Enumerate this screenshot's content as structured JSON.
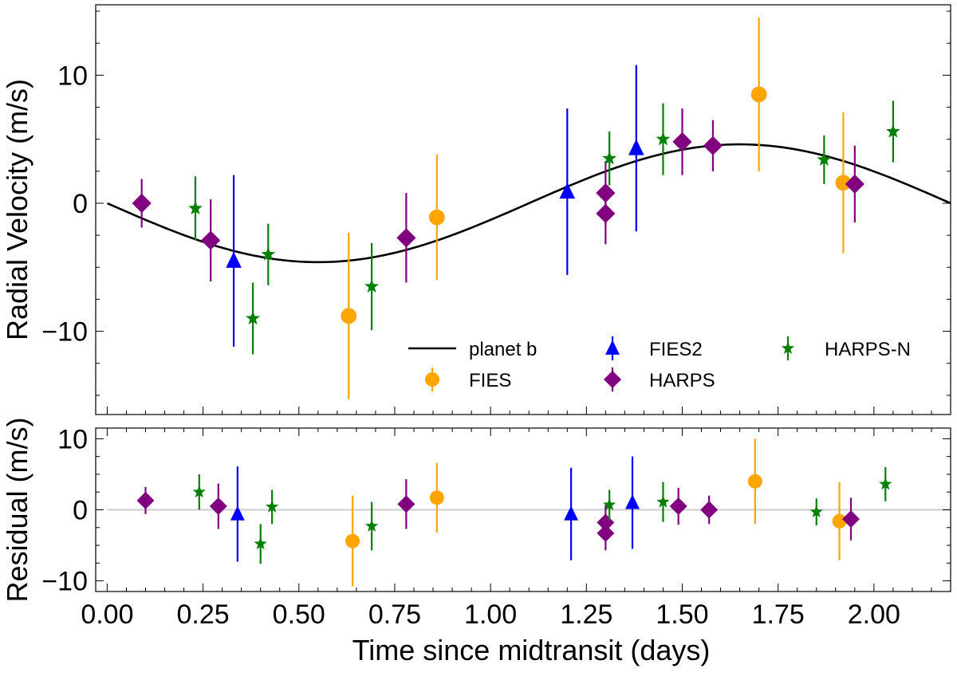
{
  "chart_data": [
    {
      "panel": "top",
      "type": "scatter",
      "xlabel": "",
      "ylabel": "Radial Velocity (m/s)",
      "xlim": [
        -0.03,
        2.2
      ],
      "ylim": [
        -16.5,
        15.5
      ],
      "yticks": [
        -10,
        0,
        10
      ],
      "ytick_labels": [
        "−10",
        "0",
        "10"
      ],
      "legend_position": "lower-right",
      "model": {
        "name": "planet b",
        "color": "#000000",
        "amplitude": 4.6,
        "period": 2.2,
        "peak_time": 1.65,
        "x": [
          0.0,
          0.1,
          0.2,
          0.3,
          0.4,
          0.5,
          0.55,
          0.6,
          0.7,
          0.8,
          0.9,
          1.0,
          1.1,
          1.2,
          1.3,
          1.4,
          1.5,
          1.6,
          1.65,
          1.7,
          1.8,
          1.9,
          2.0,
          2.1,
          2.2
        ],
        "y": [
          0.0,
          -1.3,
          -2.5,
          -3.6,
          -4.3,
          -4.6,
          -4.6,
          -4.5,
          -4.0,
          -3.2,
          -2.2,
          -0.9,
          0.5,
          1.9,
          3.0,
          3.9,
          4.4,
          4.6,
          4.6,
          4.6,
          4.3,
          3.6,
          2.5,
          1.3,
          0.0
        ]
      },
      "series": [
        {
          "name": "FIES",
          "marker": "circle",
          "color": "#FFA500",
          "points": [
            {
              "x": 0.63,
              "y": -8.8,
              "err": 6.5
            },
            {
              "x": 0.86,
              "y": -1.1,
              "err": 4.9
            },
            {
              "x": 1.7,
              "y": 8.5,
              "err": 6.0
            },
            {
              "x": 1.92,
              "y": 1.6,
              "err": 5.5
            }
          ]
        },
        {
          "name": "FIES2",
          "marker": "triangle",
          "color": "#0000FF",
          "points": [
            {
              "x": 0.33,
              "y": -4.5,
              "err": 6.7
            },
            {
              "x": 1.2,
              "y": 0.9,
              "err": 6.5
            },
            {
              "x": 1.38,
              "y": 4.3,
              "err": 6.5
            }
          ]
        },
        {
          "name": "HARPS",
          "marker": "diamond",
          "color": "#800080",
          "points": [
            {
              "x": 0.09,
              "y": 0.0,
              "err": 1.9
            },
            {
              "x": 0.27,
              "y": -2.9,
              "err": 3.2
            },
            {
              "x": 0.78,
              "y": -2.7,
              "err": 3.5
            },
            {
              "x": 1.3,
              "y": 0.8,
              "err": 2.5
            },
            {
              "x": 1.3,
              "y": -0.8,
              "err": 2.4
            },
            {
              "x": 1.5,
              "y": 4.8,
              "err": 2.6
            },
            {
              "x": 1.58,
              "y": 4.5,
              "err": 2.0
            },
            {
              "x": 1.95,
              "y": 1.5,
              "err": 3.0
            }
          ]
        },
        {
          "name": "HARPS-N",
          "marker": "star",
          "color": "#008000",
          "points": [
            {
              "x": 0.23,
              "y": -0.4,
              "err": 2.5
            },
            {
              "x": 0.38,
              "y": -9.0,
              "err": 2.8
            },
            {
              "x": 0.42,
              "y": -4.0,
              "err": 2.4
            },
            {
              "x": 0.69,
              "y": -6.5,
              "err": 3.4
            },
            {
              "x": 1.31,
              "y": 3.5,
              "err": 2.1
            },
            {
              "x": 1.45,
              "y": 5.0,
              "err": 2.8
            },
            {
              "x": 1.87,
              "y": 3.4,
              "err": 1.9
            },
            {
              "x": 2.05,
              "y": 5.6,
              "err": 2.4
            }
          ]
        }
      ]
    },
    {
      "panel": "bottom",
      "type": "scatter",
      "xlabel": "Time since midtransit (days)",
      "ylabel": "Residual (m/s)",
      "xlim": [
        -0.03,
        2.2
      ],
      "ylim": [
        -11.5,
        11.5
      ],
      "xticks": [
        0.0,
        0.25,
        0.5,
        0.75,
        1.0,
        1.25,
        1.5,
        1.75,
        2.0
      ],
      "xtick_labels": [
        "0.00",
        "0.25",
        "0.50",
        "0.75",
        "1.00",
        "1.25",
        "1.50",
        "1.75",
        "2.00"
      ],
      "yticks": [
        -10,
        0,
        10
      ],
      "ytick_labels": [
        "−10",
        "0",
        "10"
      ],
      "zero_line_color": "#cccccc",
      "series": [
        {
          "name": "FIES",
          "marker": "circle",
          "color": "#FFA500",
          "points": [
            {
              "x": 0.64,
              "y": -4.4,
              "err": 6.4
            },
            {
              "x": 0.86,
              "y": 1.7,
              "err": 4.9
            },
            {
              "x": 1.69,
              "y": 4.0,
              "err": 6.0
            },
            {
              "x": 1.91,
              "y": -1.6,
              "err": 5.5
            }
          ]
        },
        {
          "name": "FIES2",
          "marker": "triangle",
          "color": "#0000FF",
          "points": [
            {
              "x": 0.34,
              "y": -0.6,
              "err": 6.7
            },
            {
              "x": 1.21,
              "y": -0.6,
              "err": 6.5
            },
            {
              "x": 1.37,
              "y": 1.0,
              "err": 6.5
            }
          ]
        },
        {
          "name": "HARPS",
          "marker": "diamond",
          "color": "#800080",
          "points": [
            {
              "x": 0.1,
              "y": 1.3,
              "err": 1.9
            },
            {
              "x": 0.29,
              "y": 0.5,
              "err": 3.2
            },
            {
              "x": 0.78,
              "y": 0.8,
              "err": 3.5
            },
            {
              "x": 1.3,
              "y": -1.8,
              "err": 2.5
            },
            {
              "x": 1.3,
              "y": -3.3,
              "err": 2.4
            },
            {
              "x": 1.49,
              "y": 0.5,
              "err": 2.6
            },
            {
              "x": 1.57,
              "y": 0.0,
              "err": 2.0
            },
            {
              "x": 1.94,
              "y": -1.3,
              "err": 3.0
            }
          ]
        },
        {
          "name": "HARPS-N",
          "marker": "star",
          "color": "#008000",
          "points": [
            {
              "x": 0.24,
              "y": 2.5,
              "err": 2.5
            },
            {
              "x": 0.4,
              "y": -4.8,
              "err": 2.8
            },
            {
              "x": 0.43,
              "y": 0.4,
              "err": 2.4
            },
            {
              "x": 0.69,
              "y": -2.3,
              "err": 3.4
            },
            {
              "x": 1.31,
              "y": 0.7,
              "err": 2.1
            },
            {
              "x": 1.45,
              "y": 1.1,
              "err": 2.8
            },
            {
              "x": 1.85,
              "y": -0.3,
              "err": 1.9
            },
            {
              "x": 2.03,
              "y": 3.6,
              "err": 2.4
            }
          ]
        }
      ]
    }
  ]
}
